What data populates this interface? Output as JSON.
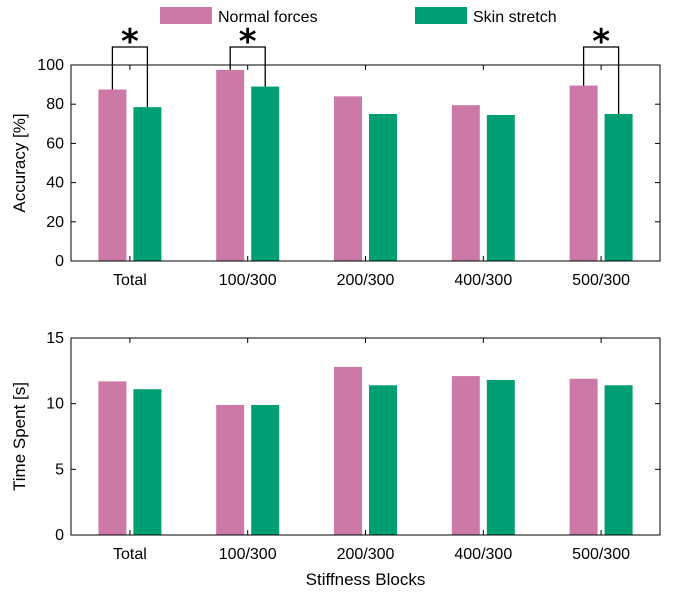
{
  "colors": {
    "normal": "#cc79a7",
    "skin": "#009e73"
  },
  "legend": {
    "normal_label": "Normal forces",
    "skin_label": "Skin stretch"
  },
  "chart_data": [
    {
      "type": "bar",
      "categories": [
        "Total",
        "100/300",
        "200/300",
        "400/300",
        "500/300"
      ],
      "series": [
        {
          "name": "Normal forces",
          "values": [
            87.5,
            97.5,
            84,
            79.5,
            89.5
          ]
        },
        {
          "name": "Skin stretch",
          "values": [
            78.5,
            89,
            75,
            74.5,
            75
          ]
        }
      ],
      "ylabel": "Accuracy [%]",
      "xlabel": "",
      "ylim": [
        0,
        100
      ],
      "yticks": [
        0,
        20,
        40,
        60,
        80,
        100
      ],
      "significance": [
        {
          "category": "Total",
          "marker": "*"
        },
        {
          "category": "100/300",
          "marker": "*"
        },
        {
          "category": "500/300",
          "marker": "*"
        }
      ],
      "grid": false
    },
    {
      "type": "bar",
      "categories": [
        "Total",
        "100/300",
        "200/300",
        "400/300",
        "500/300"
      ],
      "series": [
        {
          "name": "Normal forces",
          "values": [
            11.7,
            9.9,
            12.8,
            12.1,
            11.9
          ]
        },
        {
          "name": "Skin stretch",
          "values": [
            11.1,
            9.9,
            11.4,
            11.8,
            11.4
          ]
        }
      ],
      "ylabel": "Time Spent [s]",
      "xlabel": "Stiffness Blocks",
      "ylim": [
        0,
        15
      ],
      "yticks": [
        0,
        5,
        10,
        15
      ],
      "grid": false
    }
  ]
}
